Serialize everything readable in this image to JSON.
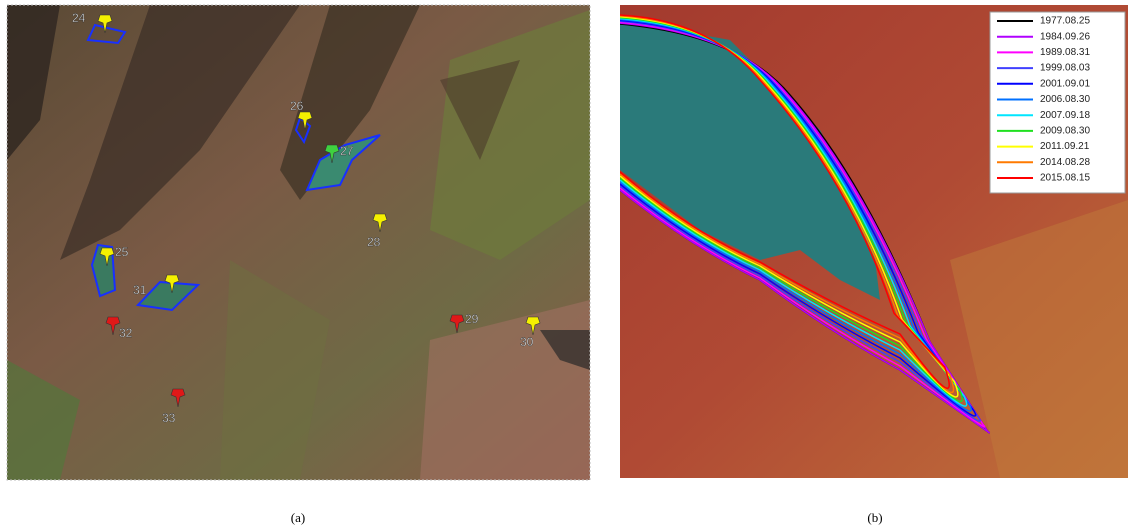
{
  "panels": [
    {
      "caption": "(a)",
      "markers": [
        {
          "label": "24",
          "color": "#f5f000"
        },
        {
          "label": "26",
          "color": "#f5f000"
        },
        {
          "label": "27",
          "color": "#3fd13f"
        },
        {
          "label": "25",
          "color": "#f5f000"
        },
        {
          "label": "31",
          "color": "#f5f000"
        },
        {
          "label": "28",
          "color": "#f5f000"
        },
        {
          "label": "32",
          "color": "#e01818"
        },
        {
          "label": "29",
          "color": "#e01818"
        },
        {
          "label": "30",
          "color": "#f5f000"
        },
        {
          "label": "33",
          "color": "#e01818"
        }
      ]
    },
    {
      "caption": "(b)",
      "legend": [
        {
          "label": "1977.08.25",
          "color": "#000000"
        },
        {
          "label": "1984.09.26",
          "color": "#b000ff"
        },
        {
          "label": "1989.08.31",
          "color": "#ff00ff"
        },
        {
          "label": "1999.08.03",
          "color": "#4040ff"
        },
        {
          "label": "2001.09.01",
          "color": "#0000ff"
        },
        {
          "label": "2006.08.30",
          "color": "#0070ff"
        },
        {
          "label": "2007.09.18",
          "color": "#00e5ff"
        },
        {
          "label": "2009.08.30",
          "color": "#20e020"
        },
        {
          "label": "2011.09.21",
          "color": "#ffff00"
        },
        {
          "label": "2014.08.28",
          "color": "#ff7a00"
        },
        {
          "label": "2015.08.15",
          "color": "#ff0000"
        }
      ]
    }
  ]
}
